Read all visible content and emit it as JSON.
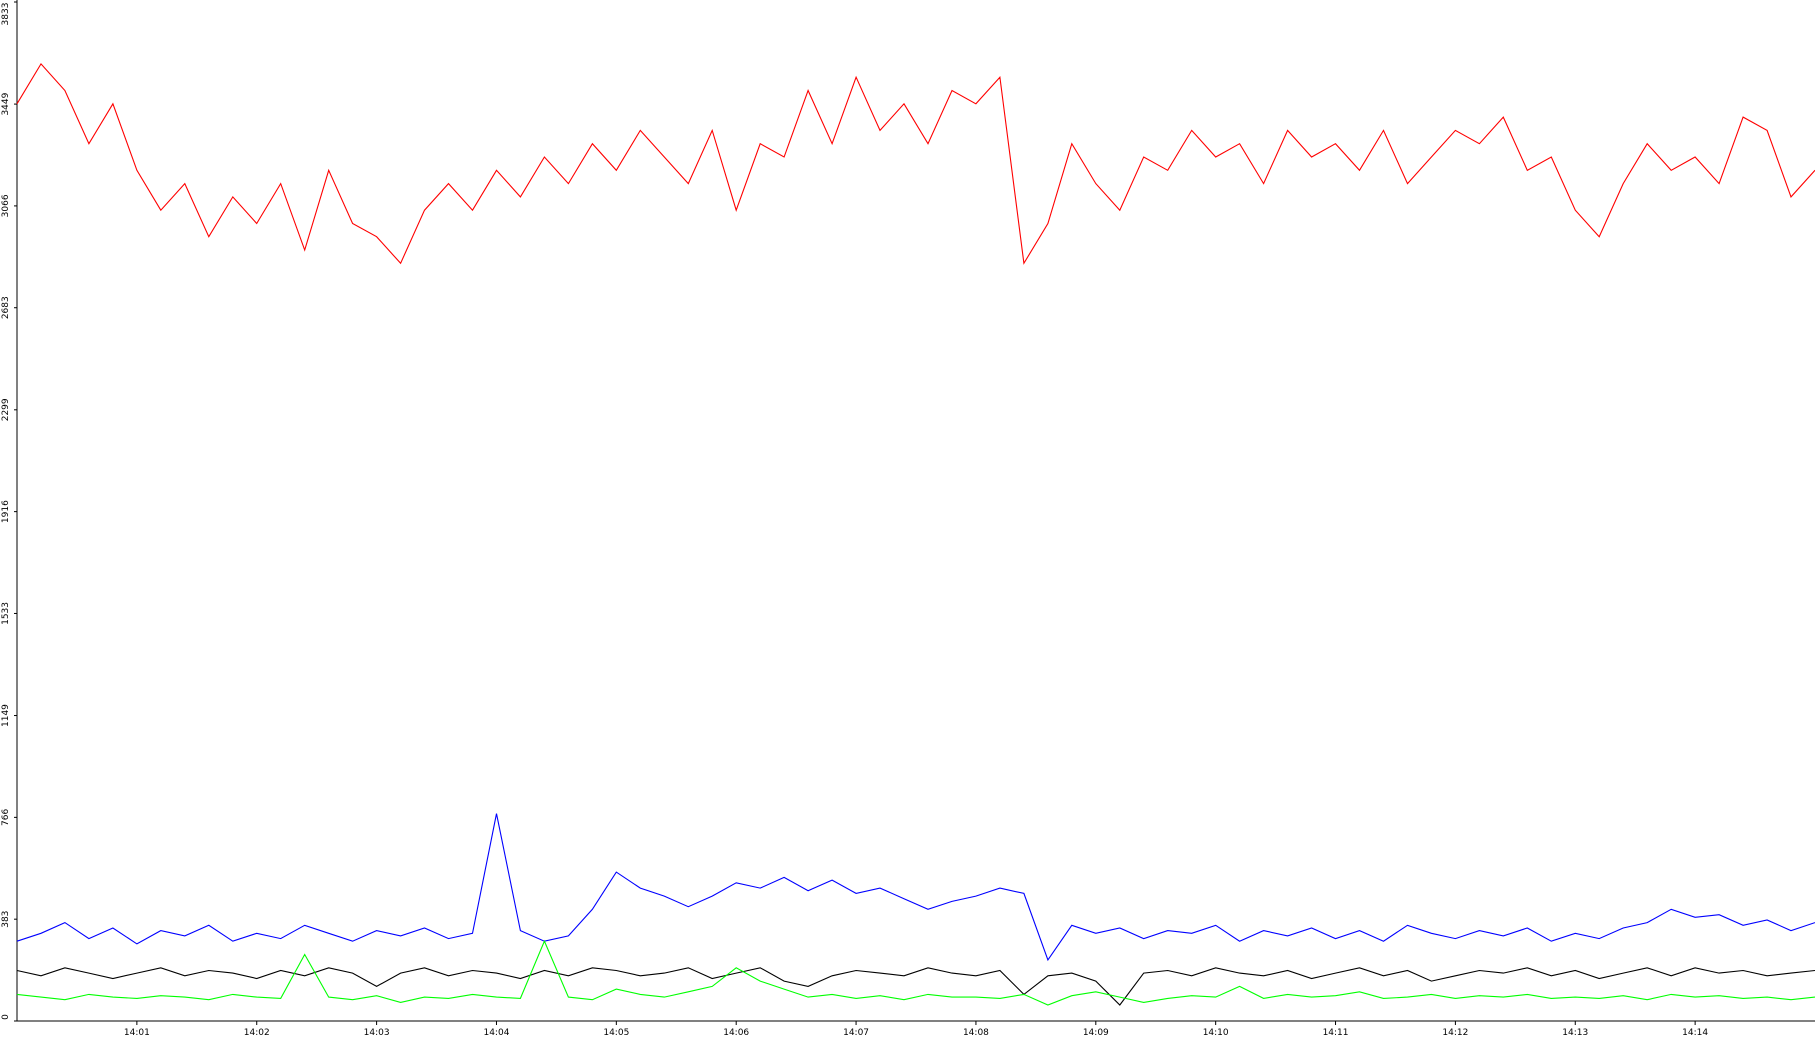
{
  "chart_data": {
    "type": "line",
    "x": [
      0,
      0.2,
      0.4,
      0.6,
      0.8,
      1,
      1.2,
      1.4,
      1.6,
      1.8,
      2,
      2.2,
      2.4,
      2.6,
      2.8,
      3,
      3.2,
      3.4,
      3.6,
      3.8,
      4,
      4.2,
      4.4,
      4.6,
      4.8,
      5,
      5.2,
      5.4,
      5.6,
      5.8,
      6,
      6.2,
      6.4,
      6.6,
      6.8,
      7,
      7.2,
      7.4,
      7.6,
      7.8,
      8,
      8.2,
      8.4,
      8.6,
      8.8,
      9,
      9.2,
      9.4,
      9.6,
      9.8,
      10,
      10.2,
      10.4,
      10.6,
      10.8,
      11,
      11.2,
      11.4,
      11.6,
      11.8,
      12,
      12.2,
      12.4,
      12.6,
      12.8,
      13,
      13.2,
      13.4,
      13.6,
      13.8,
      14,
      14.2,
      14.4,
      14.6,
      14.8,
      15
    ],
    "series": [
      {
        "color": "#ff0000",
        "values": [
          3450,
          3600,
          3500,
          3300,
          3450,
          3200,
          3050,
          3150,
          2950,
          3100,
          3000,
          3150,
          2900,
          3200,
          3000,
          2950,
          2850,
          3050,
          3150,
          3050,
          3200,
          3100,
          3250,
          3150,
          3300,
          3200,
          3350,
          3250,
          3150,
          3350,
          3050,
          3300,
          3250,
          3500,
          3300,
          3550,
          3350,
          3450,
          3300,
          3500,
          3450,
          3550,
          2850,
          3000,
          3300,
          3150,
          3050,
          3250,
          3200,
          3350,
          3250,
          3300,
          3150,
          3350,
          3250,
          3300,
          3200,
          3350,
          3150,
          3250,
          3350,
          3300,
          3400,
          3200,
          3250,
          3050,
          2950,
          3150,
          3300,
          3200,
          3250,
          3150,
          3400,
          3350,
          3100,
          3200
        ]
      },
      {
        "color": "#0000ff",
        "values": [
          300,
          330,
          370,
          310,
          350,
          290,
          340,
          320,
          360,
          300,
          330,
          310,
          360,
          330,
          300,
          340,
          320,
          350,
          310,
          330,
          780,
          340,
          300,
          320,
          420,
          560,
          500,
          470,
          430,
          470,
          520,
          500,
          540,
          490,
          530,
          480,
          500,
          460,
          420,
          450,
          470,
          500,
          480,
          230,
          360,
          330,
          350,
          310,
          340,
          330,
          360,
          300,
          340,
          320,
          350,
          310,
          340,
          300,
          360,
          330,
          310,
          340,
          320,
          350,
          300,
          330,
          310,
          350,
          370,
          420,
          390,
          400,
          360,
          380,
          340,
          370
        ]
      },
      {
        "color": "#000000",
        "values": [
          190,
          170,
          200,
          180,
          160,
          180,
          200,
          170,
          190,
          180,
          160,
          190,
          170,
          200,
          180,
          130,
          180,
          200,
          170,
          190,
          180,
          160,
          190,
          170,
          200,
          190,
          170,
          180,
          200,
          160,
          180,
          200,
          150,
          130,
          170,
          190,
          180,
          170,
          200,
          180,
          170,
          190,
          100,
          170,
          180,
          150,
          60,
          180,
          190,
          170,
          200,
          180,
          170,
          190,
          160,
          180,
          200,
          170,
          190,
          150,
          170,
          190,
          180,
          200,
          170,
          190,
          160,
          180,
          200,
          170,
          200,
          180,
          190,
          170,
          180,
          190
        ]
      },
      {
        "color": "#00ff00",
        "values": [
          100,
          90,
          80,
          100,
          90,
          85,
          95,
          90,
          80,
          100,
          90,
          85,
          250,
          90,
          80,
          95,
          70,
          90,
          85,
          100,
          90,
          85,
          300,
          90,
          80,
          120,
          100,
          90,
          110,
          130,
          200,
          150,
          120,
          90,
          100,
          85,
          95,
          80,
          100,
          90,
          90,
          85,
          100,
          60,
          95,
          110,
          90,
          70,
          85,
          95,
          90,
          130,
          85,
          100,
          90,
          95,
          110,
          85,
          90,
          100,
          85,
          95,
          90,
          100,
          85,
          90,
          85,
          95,
          80,
          100,
          90,
          95,
          85,
          90,
          80,
          90
        ]
      }
    ],
    "xlim": [
      0,
      15
    ],
    "xticks": [
      {
        "value": 1,
        "label": "14:01"
      },
      {
        "value": 2,
        "label": "14:02"
      },
      {
        "value": 3,
        "label": "14:03"
      },
      {
        "value": 4,
        "label": "14:04"
      },
      {
        "value": 5,
        "label": "14:05"
      },
      {
        "value": 6,
        "label": "14:06"
      },
      {
        "value": 7,
        "label": "14:07"
      },
      {
        "value": 8,
        "label": "14:08"
      },
      {
        "value": 9,
        "label": "14:09"
      },
      {
        "value": 10,
        "label": "14:10"
      },
      {
        "value": 11,
        "label": "14:11"
      },
      {
        "value": 12,
        "label": "14:12"
      },
      {
        "value": 13,
        "label": "14:13"
      },
      {
        "value": 14,
        "label": "14:14"
      }
    ],
    "ylim": [
      0,
      3833
    ],
    "yticks": [
      0,
      383,
      766,
      1149,
      1533,
      1916,
      2299,
      2683,
      3066,
      3449,
      3833
    ]
  }
}
